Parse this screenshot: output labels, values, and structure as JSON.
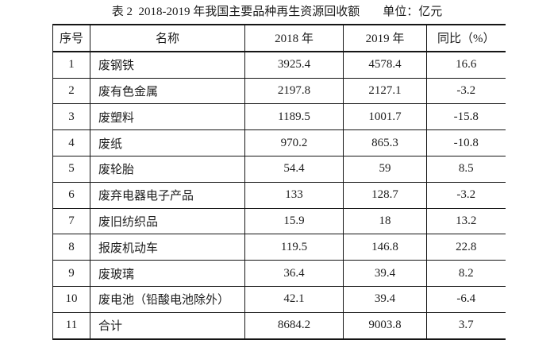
{
  "title": {
    "label": "表 2  2018-2019 年我国主要品种再生资源回收额",
    "unit": "单位：亿元"
  },
  "table": {
    "columns": [
      "序号",
      "名称",
      "2018 年",
      "2019 年",
      "同比（%）"
    ],
    "fields": [
      "no",
      "name",
      "y2018",
      "y2019",
      "yoy"
    ],
    "rows": [
      {
        "no": "1",
        "name": "废钢铁",
        "y2018": "3925.4",
        "y2019": "4578.4",
        "yoy": "16.6"
      },
      {
        "no": "2",
        "name": "废有色金属",
        "y2018": "2197.8",
        "y2019": "2127.1",
        "yoy": "-3.2"
      },
      {
        "no": "3",
        "name": "废塑料",
        "y2018": "1189.5",
        "y2019": "1001.7",
        "yoy": "-15.8"
      },
      {
        "no": "4",
        "name": "废纸",
        "y2018": "970.2",
        "y2019": "865.3",
        "yoy": "-10.8"
      },
      {
        "no": "5",
        "name": "废轮胎",
        "y2018": "54.4",
        "y2019": "59",
        "yoy": "8.5"
      },
      {
        "no": "6",
        "name": "废弃电器电子产品",
        "y2018": "133",
        "y2019": "128.7",
        "yoy": "-3.2"
      },
      {
        "no": "7",
        "name": "废旧纺织品",
        "y2018": "15.9",
        "y2019": "18",
        "yoy": "13.2"
      },
      {
        "no": "8",
        "name": "报废机动车",
        "y2018": "119.5",
        "y2019": "146.8",
        "yoy": "22.8"
      },
      {
        "no": "9",
        "name": "废玻璃",
        "y2018": "36.4",
        "y2019": "39.4",
        "yoy": "8.2"
      },
      {
        "no": "10",
        "name": "废电池（铅酸电池除外）",
        "y2018": "42.1",
        "y2019": "39.4",
        "yoy": "-6.4"
      },
      {
        "no": "11",
        "name": "合计",
        "y2018": "8684.2",
        "y2019": "9003.8",
        "yoy": "3.7"
      }
    ]
  },
  "colors": {
    "text": "#1d1d1d",
    "border": "#151515",
    "background": "#ffffff"
  }
}
